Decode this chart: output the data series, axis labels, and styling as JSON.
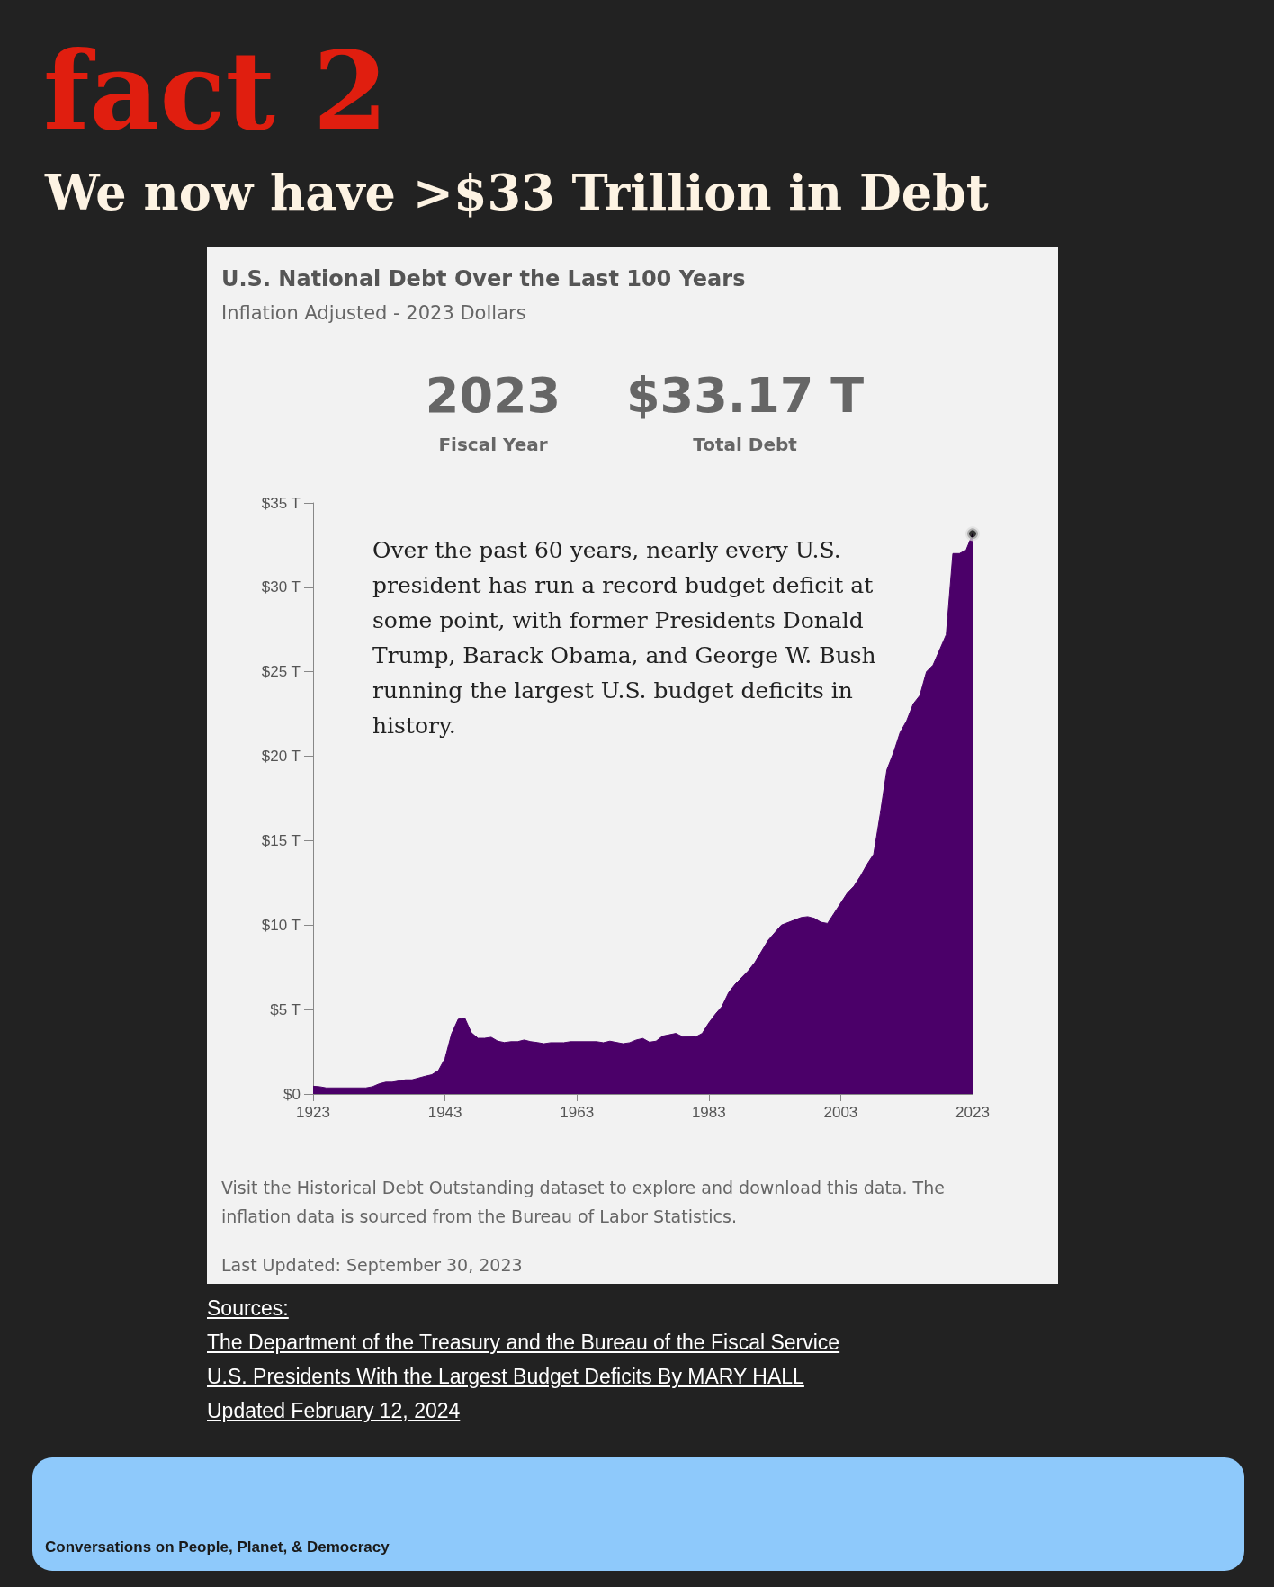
{
  "chart_data": {
    "type": "area",
    "title": "U.S. National Debt Over the Last 100 Years",
    "subtitle": "Inflation Adjusted - 2023 Dollars",
    "annotations": [
      "fact 2",
      "We now have >$33 Trillion in Debt",
      "2023",
      "Fiscal Year",
      "$33.17 T",
      "Total Debt",
      "Over the past 60 years, nearly every U.S. president has run a record budget deficit at some point, with former Presidents Donald Trump, Barack Obama, and George W. Bush running the largest U.S. budget deficits in history.",
      "Visit the Historical Debt Outstanding dataset to explore and download this data. The inflation data is sourced from the Bureau of Labor Statistics.",
      "Last Updated: September 30, 2023",
      "Sources:",
      "The Department of the Treasury and the Bureau of the Fiscal Service",
      "U.S. Presidents With the Largest Budget Deficits By MARY HALL",
      "Updated February 12, 2024",
      "Conversations on People, Planet, & Democracy"
    ],
    "series": [
      {
        "type": "area",
        "color": "#4b0069",
        "marker": "none",
        "x": [
          1923,
          1924,
          1925,
          1931,
          1932,
          1933,
          1934,
          1935,
          1937,
          1938,
          1940,
          1941,
          1942,
          1943,
          1944,
          1945,
          1946,
          1947,
          1948,
          1949,
          1950,
          1951,
          1952,
          1953,
          1954,
          1955,
          1956,
          1957,
          1958,
          1959,
          1961,
          1962,
          1966,
          1967,
          1968,
          1970,
          1971,
          1972,
          1973,
          1974,
          1975,
          1976,
          1978,
          1979,
          1981,
          1982,
          1983,
          1984,
          1985,
          1986,
          1987,
          1989,
          1990,
          1992,
          1994,
          1997,
          1998,
          1999,
          2000,
          2001,
          2002,
          2004,
          2005,
          2006,
          2007,
          2008,
          2009,
          2010,
          2011,
          2012,
          2013,
          2014,
          2015,
          2016,
          2017,
          2019,
          2020,
          2021,
          2022,
          2023
        ],
        "values": [
          0.46,
          0.43,
          0.36,
          0.36,
          0.43,
          0.6,
          0.7,
          0.7,
          0.84,
          0.84,
          1.05,
          1.14,
          1.39,
          2.1,
          3.57,
          4.43,
          4.5,
          3.63,
          3.3,
          3.3,
          3.36,
          3.13,
          3.05,
          3.1,
          3.1,
          3.2,
          3.1,
          3.05,
          2.98,
          3.04,
          3.04,
          3.1,
          3.1,
          3.04,
          3.13,
          2.98,
          3.04,
          3.2,
          3.29,
          3.07,
          3.13,
          3.43,
          3.59,
          3.4,
          3.38,
          3.59,
          4.21,
          4.73,
          5.18,
          6.0,
          6.5,
          7.3,
          7.8,
          9.1,
          10.0,
          10.45,
          10.5,
          10.4,
          10.17,
          10.1,
          10.7,
          11.9,
          12.3,
          12.9,
          13.6,
          14.2,
          16.6,
          19.2,
          20.2,
          21.4,
          22.1,
          23.1,
          23.6,
          25.0,
          25.4,
          27.2,
          32.0,
          32.0,
          32.2,
          33.17
        ]
      },
      {
        "type": "scatter",
        "color": "#000000",
        "marker": "circle",
        "x": [
          2023
        ],
        "values": [
          33.17
        ]
      }
    ],
    "xlim": [
      1923,
      2023
    ],
    "xticks": [
      1923,
      1943,
      1963,
      1983,
      2003,
      2023
    ],
    "ylim": [
      0,
      35
    ],
    "yticks": [
      {
        "value": 0,
        "label": "$0"
      },
      {
        "value": 5,
        "label": "$5 T"
      },
      {
        "value": 10,
        "label": "$10 T"
      },
      {
        "value": 15,
        "label": "$15 T"
      },
      {
        "value": 20,
        "label": "$20 T"
      },
      {
        "value": 25,
        "label": "$25 T"
      },
      {
        "value": 30,
        "label": "$30 T"
      },
      {
        "value": 35,
        "label": "$35 T"
      }
    ]
  }
}
